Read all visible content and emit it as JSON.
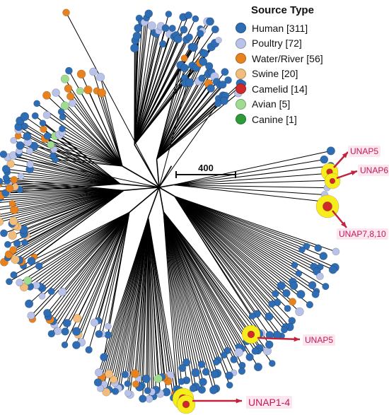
{
  "legend": {
    "title": "Source Type",
    "items": [
      {
        "label": "Human [311]",
        "color": "#2e6db4"
      },
      {
        "label": "Poultry [72]",
        "color": "#b9c3ea"
      },
      {
        "label": "Water/River [56]",
        "color": "#e8821e"
      },
      {
        "label": "Swine [20]",
        "color": "#f2bc7c"
      },
      {
        "label": "Camelid [14]",
        "color": "#cf2a2a"
      },
      {
        "label": "Avian [5]",
        "color": "#9fdc92"
      },
      {
        "label": "Canine [1]",
        "color": "#2e9b3a"
      }
    ]
  },
  "scale_bar": {
    "label": "400"
  },
  "callouts": [
    {
      "key": "unap5-top",
      "label": "UNAP5"
    },
    {
      "key": "unap6",
      "label": "UNAP6"
    },
    {
      "key": "unap7",
      "label": "UNAP7,8,10"
    },
    {
      "key": "unap5-bottom",
      "label": "UNAP5"
    },
    {
      "key": "unap1",
      "label": "UNAP1-4"
    }
  ],
  "highlight_color": "#f7ec1c",
  "arrow_color": "#c0243c"
}
